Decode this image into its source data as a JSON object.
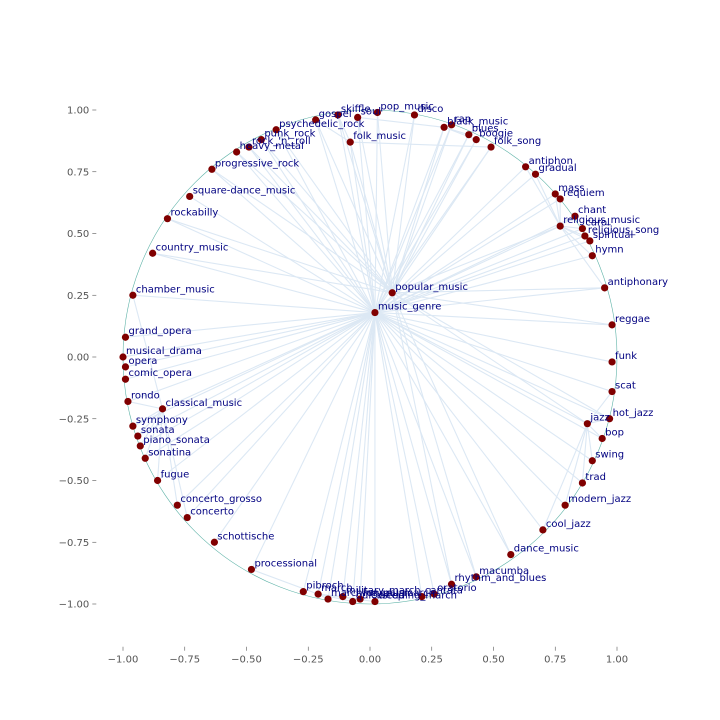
{
  "chart_data": {
    "type": "scatter",
    "subtype": "network-graph",
    "title": "",
    "xlabel": "",
    "ylabel": "",
    "xlim": [
      -1.1,
      1.1
    ],
    "ylim": [
      -1.1,
      1.1
    ],
    "x_ticks": [
      "−1.00",
      "−0.75",
      "−0.50",
      "−0.25",
      "0.00",
      "0.25",
      "0.50",
      "0.75",
      "1.00"
    ],
    "y_ticks": [
      "−1.00",
      "−0.75",
      "−0.50",
      "−0.25",
      "0.00",
      "0.25",
      "0.50",
      "0.75",
      "1.00"
    ],
    "grid": false,
    "circle_radius": 1.0,
    "colors": {
      "node": "#800000",
      "edge": "#dce8f4",
      "label": "#000080",
      "circle": "#5fb3a8",
      "axis": "#555555"
    },
    "center_nodes": [
      {
        "label": "popular_music",
        "x": 0.09,
        "y": 0.26
      },
      {
        "label": "music_genre",
        "x": 0.02,
        "y": 0.18
      }
    ],
    "nodes": [
      {
        "label": "disco",
        "x": 0.18,
        "y": 0.98
      },
      {
        "label": "pop_music",
        "x": 0.03,
        "y": 0.99
      },
      {
        "label": "soul",
        "x": -0.05,
        "y": 0.97
      },
      {
        "label": "skiffle",
        "x": -0.13,
        "y": 0.98
      },
      {
        "label": "gospel",
        "x": -0.22,
        "y": 0.96
      },
      {
        "label": "rap",
        "x": 0.33,
        "y": 0.94
      },
      {
        "label": "black_music",
        "x": 0.3,
        "y": 0.93
      },
      {
        "label": "blues",
        "x": 0.4,
        "y": 0.9
      },
      {
        "label": "boogie",
        "x": 0.43,
        "y": 0.88
      },
      {
        "label": "folk_song",
        "x": 0.49,
        "y": 0.85
      },
      {
        "label": "folk_music",
        "x": -0.08,
        "y": 0.87
      },
      {
        "label": "psychedelic_rock",
        "x": -0.38,
        "y": 0.92
      },
      {
        "label": "punk_rock",
        "x": -0.44,
        "y": 0.88
      },
      {
        "label": "rock_'n'_roll",
        "x": -0.49,
        "y": 0.85
      },
      {
        "label": "heavy_metal",
        "x": -0.54,
        "y": 0.83
      },
      {
        "label": "progressive_rock",
        "x": -0.64,
        "y": 0.76
      },
      {
        "label": "square-dance_music",
        "x": -0.73,
        "y": 0.65
      },
      {
        "label": "rockabilly",
        "x": -0.82,
        "y": 0.56
      },
      {
        "label": "country_music",
        "x": -0.88,
        "y": 0.42
      },
      {
        "label": "chamber_music",
        "x": -0.96,
        "y": 0.25
      },
      {
        "label": "grand_opera",
        "x": -0.99,
        "y": 0.08
      },
      {
        "label": "musical_drama",
        "x": -1.0,
        "y": 0.0
      },
      {
        "label": "opera",
        "x": -0.99,
        "y": -0.04
      },
      {
        "label": "comic_opera",
        "x": -0.99,
        "y": -0.09
      },
      {
        "label": "rondo",
        "x": -0.98,
        "y": -0.18
      },
      {
        "label": "classical_music",
        "x": -0.84,
        "y": -0.21
      },
      {
        "label": "symphony",
        "x": -0.96,
        "y": -0.28
      },
      {
        "label": "sonata",
        "x": -0.94,
        "y": -0.32
      },
      {
        "label": "piano_sonata",
        "x": -0.93,
        "y": -0.36
      },
      {
        "label": "sonatina",
        "x": -0.91,
        "y": -0.41
      },
      {
        "label": "fugue",
        "x": -0.86,
        "y": -0.5
      },
      {
        "label": "concerto_grosso",
        "x": -0.78,
        "y": -0.6
      },
      {
        "label": "concerto",
        "x": -0.74,
        "y": -0.65
      },
      {
        "label": "schottische",
        "x": -0.63,
        "y": -0.75
      },
      {
        "label": "processional",
        "x": -0.48,
        "y": -0.86
      },
      {
        "label": "pibroch",
        "x": -0.27,
        "y": -0.95
      },
      {
        "label": "march",
        "x": -0.21,
        "y": -0.96
      },
      {
        "label": "marching_music",
        "x": -0.17,
        "y": -0.98
      },
      {
        "label": "military_march",
        "x": -0.11,
        "y": -0.97
      },
      {
        "label": "quickstep",
        "x": -0.07,
        "y": -0.99
      },
      {
        "label": "funeral_march",
        "x": -0.04,
        "y": -0.98
      },
      {
        "label": "wedding_march",
        "x": 0.02,
        "y": -0.99
      },
      {
        "label": "cantata",
        "x": 0.21,
        "y": -0.97
      },
      {
        "label": "oratorio",
        "x": 0.26,
        "y": -0.96
      },
      {
        "label": "rhythm_and_blues",
        "x": 0.33,
        "y": -0.92
      },
      {
        "label": "macumba",
        "x": 0.43,
        "y": -0.89
      },
      {
        "label": "dance_music",
        "x": 0.57,
        "y": -0.8
      },
      {
        "label": "cool_jazz",
        "x": 0.7,
        "y": -0.7
      },
      {
        "label": "modern_jazz",
        "x": 0.79,
        "y": -0.6
      },
      {
        "label": "trad",
        "x": 0.86,
        "y": -0.51
      },
      {
        "label": "swing",
        "x": 0.9,
        "y": -0.42
      },
      {
        "label": "bop",
        "x": 0.94,
        "y": -0.33
      },
      {
        "label": "jazz",
        "x": 0.88,
        "y": -0.27
      },
      {
        "label": "hot_jazz",
        "x": 0.97,
        "y": -0.25
      },
      {
        "label": "scat",
        "x": 0.98,
        "y": -0.14
      },
      {
        "label": "funk",
        "x": 0.98,
        "y": -0.02
      },
      {
        "label": "reggae",
        "x": 0.98,
        "y": 0.13
      },
      {
        "label": "antiphonary",
        "x": 0.95,
        "y": 0.28
      },
      {
        "label": "hymn",
        "x": 0.9,
        "y": 0.41
      },
      {
        "label": "spiritual",
        "x": 0.89,
        "y": 0.47
      },
      {
        "label": "religious_song",
        "x": 0.87,
        "y": 0.49
      },
      {
        "label": "carol",
        "x": 0.86,
        "y": 0.52
      },
      {
        "label": "religious_music",
        "x": 0.77,
        "y": 0.53
      },
      {
        "label": "chant",
        "x": 0.83,
        "y": 0.57
      },
      {
        "label": "requiem",
        "x": 0.77,
        "y": 0.64
      },
      {
        "label": "mass",
        "x": 0.75,
        "y": 0.66
      },
      {
        "label": "gradual",
        "x": 0.67,
        "y": 0.74
      },
      {
        "label": "antiphon",
        "x": 0.63,
        "y": 0.77
      }
    ],
    "edges": [
      [
        "popular_music",
        "disco"
      ],
      [
        "popular_music",
        "pop_music"
      ],
      [
        "popular_music",
        "soul"
      ],
      [
        "popular_music",
        "skiffle"
      ],
      [
        "popular_music",
        "gospel"
      ],
      [
        "popular_music",
        "rap"
      ],
      [
        "popular_music",
        "black_music"
      ],
      [
        "popular_music",
        "blues"
      ],
      [
        "popular_music",
        "boogie"
      ],
      [
        "popular_music",
        "folk_song"
      ],
      [
        "popular_music",
        "folk_music"
      ],
      [
        "popular_music",
        "psychedelic_rock"
      ],
      [
        "popular_music",
        "punk_rock"
      ],
      [
        "popular_music",
        "rock_'n'_roll"
      ],
      [
        "popular_music",
        "heavy_metal"
      ],
      [
        "popular_music",
        "progressive_rock"
      ],
      [
        "popular_music",
        "rockabilly"
      ],
      [
        "popular_music",
        "country_music"
      ],
      [
        "popular_music",
        "religious_music"
      ],
      [
        "popular_music",
        "antiphonary"
      ],
      [
        "popular_music",
        "reggae"
      ],
      [
        "popular_music",
        "hot_jazz"
      ],
      [
        "popular_music",
        "jazz"
      ],
      [
        "popular_music",
        "rhythm_and_blues"
      ],
      [
        "popular_music",
        "macumba"
      ],
      [
        "popular_music",
        "dance_music"
      ],
      [
        "music_genre",
        "disco"
      ],
      [
        "music_genre",
        "pop_music"
      ],
      [
        "music_genre",
        "soul"
      ],
      [
        "music_genre",
        "skiffle"
      ],
      [
        "music_genre",
        "gospel"
      ],
      [
        "music_genre",
        "rap"
      ],
      [
        "music_genre",
        "black_music"
      ],
      [
        "music_genre",
        "blues"
      ],
      [
        "music_genre",
        "boogie"
      ],
      [
        "music_genre",
        "folk_song"
      ],
      [
        "music_genre",
        "folk_music"
      ],
      [
        "music_genre",
        "psychedelic_rock"
      ],
      [
        "music_genre",
        "punk_rock"
      ],
      [
        "music_genre",
        "rock_'n'_roll"
      ],
      [
        "music_genre",
        "heavy_metal"
      ],
      [
        "music_genre",
        "progressive_rock"
      ],
      [
        "music_genre",
        "square-dance_music"
      ],
      [
        "music_genre",
        "rockabilly"
      ],
      [
        "music_genre",
        "country_music"
      ],
      [
        "music_genre",
        "chamber_music"
      ],
      [
        "music_genre",
        "grand_opera"
      ],
      [
        "music_genre",
        "musical_drama"
      ],
      [
        "music_genre",
        "opera"
      ],
      [
        "music_genre",
        "comic_opera"
      ],
      [
        "music_genre",
        "rondo"
      ],
      [
        "music_genre",
        "classical_music"
      ],
      [
        "music_genre",
        "symphony"
      ],
      [
        "music_genre",
        "sonata"
      ],
      [
        "music_genre",
        "piano_sonata"
      ],
      [
        "music_genre",
        "sonatina"
      ],
      [
        "music_genre",
        "fugue"
      ],
      [
        "music_genre",
        "concerto_grosso"
      ],
      [
        "music_genre",
        "concerto"
      ],
      [
        "music_genre",
        "schottische"
      ],
      [
        "music_genre",
        "processional"
      ],
      [
        "music_genre",
        "pibroch"
      ],
      [
        "music_genre",
        "march"
      ],
      [
        "music_genre",
        "marching_music"
      ],
      [
        "music_genre",
        "military_march"
      ],
      [
        "music_genre",
        "quickstep"
      ],
      [
        "music_genre",
        "funeral_march"
      ],
      [
        "music_genre",
        "wedding_march"
      ],
      [
        "music_genre",
        "cantata"
      ],
      [
        "music_genre",
        "oratorio"
      ],
      [
        "music_genre",
        "rhythm_and_blues"
      ],
      [
        "music_genre",
        "macumba"
      ],
      [
        "music_genre",
        "dance_music"
      ],
      [
        "music_genre",
        "cool_jazz"
      ],
      [
        "music_genre",
        "modern_jazz"
      ],
      [
        "music_genre",
        "trad"
      ],
      [
        "music_genre",
        "swing"
      ],
      [
        "music_genre",
        "bop"
      ],
      [
        "music_genre",
        "jazz"
      ],
      [
        "music_genre",
        "hot_jazz"
      ],
      [
        "music_genre",
        "scat"
      ],
      [
        "music_genre",
        "funk"
      ],
      [
        "music_genre",
        "reggae"
      ],
      [
        "music_genre",
        "antiphonary"
      ],
      [
        "music_genre",
        "hymn"
      ],
      [
        "music_genre",
        "spiritual"
      ],
      [
        "music_genre",
        "religious_song"
      ],
      [
        "music_genre",
        "carol"
      ],
      [
        "music_genre",
        "religious_music"
      ],
      [
        "music_genre",
        "chant"
      ],
      [
        "music_genre",
        "requiem"
      ],
      [
        "music_genre",
        "mass"
      ],
      [
        "music_genre",
        "gradual"
      ],
      [
        "music_genre",
        "antiphon"
      ],
      [
        "jazz",
        "cool_jazz"
      ],
      [
        "jazz",
        "modern_jazz"
      ],
      [
        "jazz",
        "trad"
      ],
      [
        "jazz",
        "swing"
      ],
      [
        "jazz",
        "bop"
      ],
      [
        "jazz",
        "hot_jazz"
      ],
      [
        "jazz",
        "scat"
      ],
      [
        "religious_music",
        "antiphon"
      ],
      [
        "religious_music",
        "gradual"
      ],
      [
        "religious_music",
        "mass"
      ],
      [
        "religious_music",
        "requiem"
      ],
      [
        "religious_music",
        "chant"
      ],
      [
        "religious_music",
        "carol"
      ],
      [
        "religious_music",
        "religious_song"
      ],
      [
        "religious_music",
        "spiritual"
      ],
      [
        "religious_music",
        "hymn"
      ],
      [
        "religious_music",
        "antiphonary"
      ],
      [
        "classical_music",
        "rondo"
      ],
      [
        "classical_music",
        "symphony"
      ],
      [
        "classical_music",
        "sonata"
      ],
      [
        "classical_music",
        "piano_sonata"
      ],
      [
        "classical_music",
        "sonatina"
      ],
      [
        "classical_music",
        "fugue"
      ],
      [
        "classical_music",
        "concerto_grosso"
      ],
      [
        "classical_music",
        "concerto"
      ],
      [
        "classical_music",
        "chamber_music"
      ],
      [
        "black_music",
        "rap"
      ],
      [
        "black_music",
        "blues"
      ],
      [
        "black_music",
        "boogie"
      ],
      [
        "black_music",
        "soul"
      ],
      [
        "folk_music",
        "folk_song"
      ],
      [
        "folk_music",
        "skiffle"
      ],
      [
        "folk_music",
        "gospel"
      ],
      [
        "march",
        "marching_music"
      ],
      [
        "march",
        "military_march"
      ],
      [
        "march",
        "quickstep"
      ],
      [
        "march",
        "funeral_march"
      ],
      [
        "march",
        "wedding_march"
      ],
      [
        "march",
        "processional"
      ]
    ]
  }
}
